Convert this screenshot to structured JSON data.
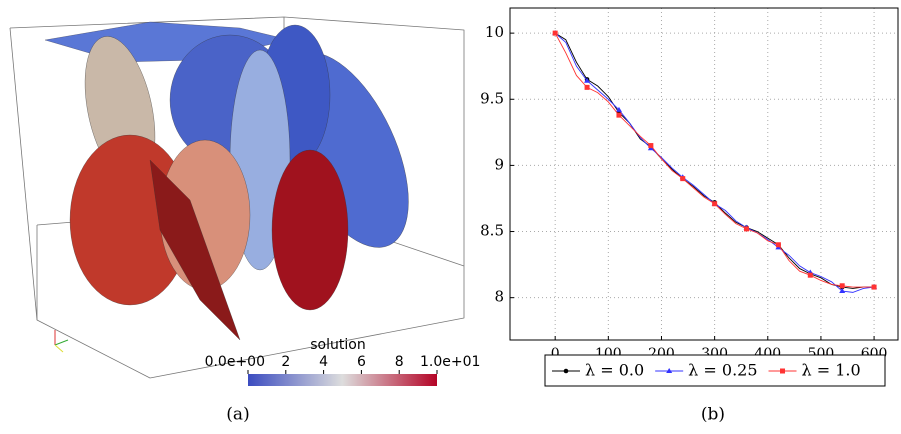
{
  "chart_data": [
    {
      "type": "colorbar",
      "title": "solution",
      "caption": "(a)",
      "xlim": [
        0,
        10
      ],
      "xticks": [
        {
          "value": 0,
          "label": "0.0e+00"
        },
        2,
        4,
        6,
        8,
        {
          "value": 10,
          "label": "1.0e+01"
        }
      ],
      "colors": [
        "#3b4cc0",
        "#dddddd",
        "#b40426"
      ]
    },
    {
      "type": "line",
      "caption": "(b)",
      "x": [
        0,
        20,
        40,
        60,
        80,
        100,
        120,
        140,
        160,
        180,
        200,
        220,
        240,
        260,
        280,
        300,
        320,
        340,
        360,
        380,
        400,
        420,
        440,
        460,
        480,
        500,
        520,
        540,
        560,
        580,
        600
      ],
      "xlim": [
        -85,
        645
      ],
      "xticks": [
        0,
        100,
        200,
        300,
        400,
        500,
        600
      ],
      "ylim": [
        7.68,
        10.19
      ],
      "yticks": [
        8,
        8.5,
        9,
        9.5,
        10
      ],
      "grid": true,
      "series": [
        {
          "name": "λ = 0.0",
          "color": "#000000",
          "marker": "circle",
          "values": [
            10.0,
            9.95,
            9.78,
            9.65,
            9.6,
            9.52,
            9.4,
            9.32,
            9.2,
            9.14,
            9.05,
            8.97,
            8.9,
            8.84,
            8.77,
            8.72,
            8.64,
            8.57,
            8.53,
            8.5,
            8.45,
            8.4,
            8.3,
            8.22,
            8.18,
            8.15,
            8.1,
            8.08,
            8.07,
            8.08,
            8.08
          ]
        },
        {
          "name": "λ = 0.25",
          "color": "#3333ff",
          "marker": "triangle",
          "values": [
            10.0,
            9.93,
            9.75,
            9.64,
            9.57,
            9.5,
            9.42,
            9.32,
            9.21,
            9.13,
            9.06,
            8.98,
            8.91,
            8.85,
            8.78,
            8.71,
            8.66,
            8.58,
            8.53,
            8.49,
            8.44,
            8.38,
            8.32,
            8.24,
            8.19,
            8.16,
            8.12,
            8.05,
            8.04,
            8.07,
            8.08
          ]
        },
        {
          "name": "λ = 1.0",
          "color": "#ff3333",
          "marker": "square",
          "values": [
            10.0,
            9.85,
            9.68,
            9.59,
            9.55,
            9.48,
            9.38,
            9.3,
            9.22,
            9.15,
            9.05,
            8.96,
            8.9,
            8.83,
            8.76,
            8.71,
            8.63,
            8.56,
            8.52,
            8.49,
            8.43,
            8.4,
            8.28,
            8.2,
            8.17,
            8.13,
            8.1,
            8.09,
            8.08,
            8.08,
            8.08
          ]
        }
      ]
    }
  ]
}
